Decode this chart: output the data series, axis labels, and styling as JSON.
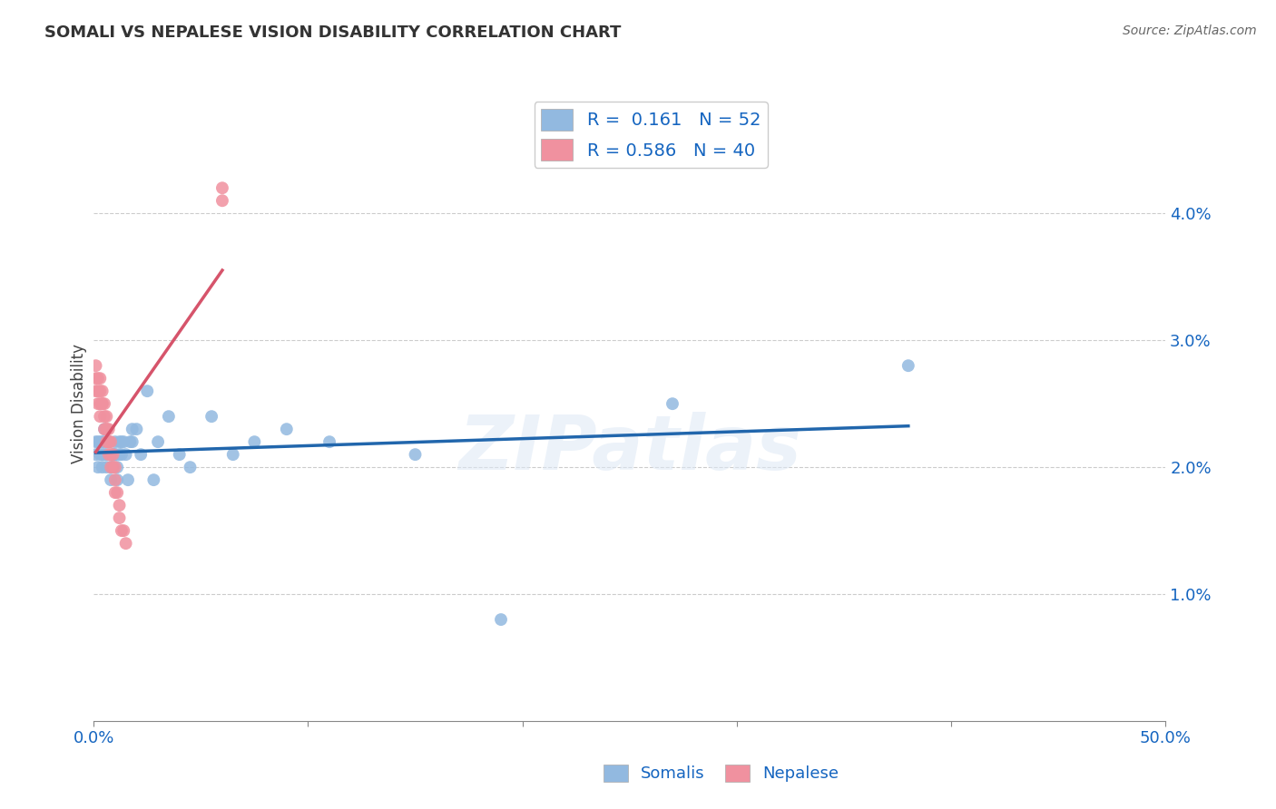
{
  "title": "SOMALI VS NEPALESE VISION DISABILITY CORRELATION CHART",
  "source": "Source: ZipAtlas.com",
  "ylabel": "Vision Disability",
  "xlim": [
    0.0,
    0.5
  ],
  "ylim": [
    0.0,
    0.05
  ],
  "somali_R": 0.161,
  "somali_N": 52,
  "nepalese_R": 0.586,
  "nepalese_N": 40,
  "somali_color": "#92B9E0",
  "nepalese_color": "#F0919F",
  "trend_somali_color": "#2166AC",
  "trend_nepalese_color": "#D6546B",
  "legend_color": "#1565C0",
  "somali_x": [
    0.001,
    0.001,
    0.002,
    0.002,
    0.003,
    0.003,
    0.004,
    0.004,
    0.004,
    0.005,
    0.005,
    0.005,
    0.006,
    0.006,
    0.007,
    0.007,
    0.008,
    0.008,
    0.009,
    0.009,
    0.01,
    0.01,
    0.01,
    0.011,
    0.011,
    0.012,
    0.012,
    0.013,
    0.013,
    0.014,
    0.015,
    0.016,
    0.017,
    0.018,
    0.018,
    0.02,
    0.022,
    0.025,
    0.028,
    0.03,
    0.035,
    0.04,
    0.045,
    0.055,
    0.065,
    0.075,
    0.09,
    0.11,
    0.15,
    0.19,
    0.27,
    0.38
  ],
  "somali_y": [
    0.022,
    0.021,
    0.02,
    0.022,
    0.021,
    0.022,
    0.022,
    0.021,
    0.02,
    0.023,
    0.022,
    0.021,
    0.021,
    0.02,
    0.022,
    0.022,
    0.02,
    0.019,
    0.021,
    0.02,
    0.021,
    0.022,
    0.021,
    0.02,
    0.019,
    0.022,
    0.021,
    0.021,
    0.022,
    0.022,
    0.021,
    0.019,
    0.022,
    0.022,
    0.023,
    0.023,
    0.021,
    0.026,
    0.019,
    0.022,
    0.024,
    0.021,
    0.02,
    0.024,
    0.021,
    0.022,
    0.023,
    0.022,
    0.021,
    0.008,
    0.025,
    0.028
  ],
  "nepalese_x": [
    0.001,
    0.001,
    0.001,
    0.002,
    0.002,
    0.002,
    0.003,
    0.003,
    0.003,
    0.003,
    0.004,
    0.004,
    0.004,
    0.005,
    0.005,
    0.005,
    0.006,
    0.006,
    0.006,
    0.006,
    0.007,
    0.007,
    0.007,
    0.007,
    0.008,
    0.008,
    0.008,
    0.009,
    0.009,
    0.01,
    0.01,
    0.01,
    0.011,
    0.012,
    0.012,
    0.013,
    0.014,
    0.015,
    0.06,
    0.06
  ],
  "nepalese_y": [
    0.028,
    0.027,
    0.026,
    0.026,
    0.027,
    0.025,
    0.027,
    0.026,
    0.025,
    0.024,
    0.026,
    0.025,
    0.025,
    0.025,
    0.024,
    0.023,
    0.024,
    0.023,
    0.023,
    0.022,
    0.023,
    0.022,
    0.022,
    0.021,
    0.022,
    0.021,
    0.02,
    0.021,
    0.02,
    0.02,
    0.019,
    0.018,
    0.018,
    0.017,
    0.016,
    0.015,
    0.015,
    0.014,
    0.041,
    0.042
  ],
  "watermark_text": "ZIPatlas",
  "background_color": "#ffffff",
  "grid_color": "#cccccc",
  "spine_color": "#888888"
}
